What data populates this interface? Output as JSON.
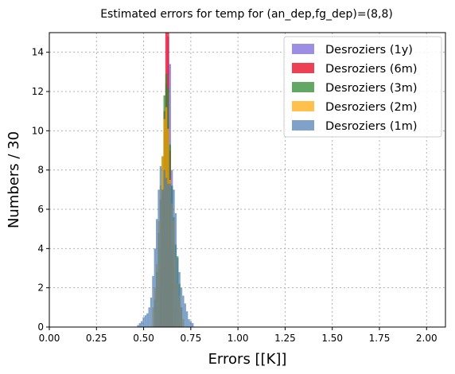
{
  "chart_data": {
    "type": "bar",
    "title": "Estimated errors for temp for (an_dep,fg_dep)=(8,8)",
    "xlabel": "Errors [[K]]",
    "ylabel": "Numbers / 30",
    "xlim": [
      0,
      2.1
    ],
    "ylim": [
      0,
      15
    ],
    "xticks": [
      0.0,
      0.25,
      0.5,
      0.75,
      1.0,
      1.25,
      1.5,
      1.75,
      2.0
    ],
    "xtick_labels": [
      "0.00",
      "0.25",
      "0.50",
      "0.75",
      "1.00",
      "1.25",
      "1.50",
      "1.75",
      "2.00"
    ],
    "yticks": [
      0,
      2,
      4,
      6,
      8,
      10,
      12,
      14
    ],
    "ytick_labels": [
      "0",
      "2",
      "4",
      "6",
      "8",
      "10",
      "12",
      "14"
    ],
    "grid": true,
    "legend_position": "top-right",
    "bin_width": 0.01,
    "series": [
      {
        "name": "Desroziers (1y)",
        "color": "#7b68d9",
        "opacity": 0.75,
        "x": [
          0.57,
          0.58,
          0.59,
          0.6,
          0.61,
          0.62,
          0.63,
          0.64,
          0.65,
          0.66,
          0.67
        ],
        "values": [
          0.8,
          2.0,
          4.0,
          6.8,
          10.0,
          12.4,
          14.8,
          13.4,
          8.0,
          3.0,
          1.0
        ]
      },
      {
        "name": "Desroziers (6m)",
        "color": "#e8102a",
        "opacity": 0.8,
        "x": [
          0.59,
          0.6,
          0.61,
          0.62,
          0.63,
          0.64,
          0.65
        ],
        "values": [
          3.0,
          7.0,
          11.0,
          15.0,
          15.0,
          9.0,
          4.0
        ]
      },
      {
        "name": "Desroziers (3m)",
        "color": "#2e8b30",
        "opacity": 0.75,
        "x": [
          0.56,
          0.57,
          0.58,
          0.59,
          0.6,
          0.61,
          0.62,
          0.63,
          0.64,
          0.65,
          0.66,
          0.67,
          0.68,
          0.69,
          0.7
        ],
        "values": [
          1.4,
          2.8,
          4.8,
          6.5,
          8.7,
          11.8,
          12.9,
          12.2,
          9.3,
          7.2,
          5.6,
          4.2,
          3.6,
          2.2,
          1.0
        ]
      },
      {
        "name": "Desroziers (2m)",
        "color": "#ffa500",
        "opacity": 0.7,
        "x": [
          0.55,
          0.56,
          0.57,
          0.58,
          0.59,
          0.6,
          0.61,
          0.62,
          0.63,
          0.64,
          0.65,
          0.66,
          0.67,
          0.68,
          0.69,
          0.7,
          0.71
        ],
        "values": [
          1.0,
          2.0,
          3.2,
          5.4,
          7.2,
          8.7,
          10.6,
          11.2,
          10.1,
          7.5,
          6.3,
          5.4,
          3.5,
          2.2,
          1.6,
          1.0,
          0.4
        ]
      },
      {
        "name": "Desroziers (1m)",
        "color": "#4a7ab0",
        "opacity": 0.7,
        "x": [
          0.47,
          0.48,
          0.49,
          0.5,
          0.51,
          0.52,
          0.53,
          0.54,
          0.55,
          0.56,
          0.57,
          0.58,
          0.59,
          0.6,
          0.61,
          0.62,
          0.63,
          0.64,
          0.65,
          0.66,
          0.67,
          0.68,
          0.69,
          0.7,
          0.71,
          0.72,
          0.73,
          0.74,
          0.75,
          0.76
        ],
        "values": [
          0.1,
          0.2,
          0.3,
          0.5,
          0.6,
          0.7,
          1.0,
          1.5,
          2.6,
          4.0,
          5.5,
          7.0,
          8.2,
          7.0,
          8.0,
          7.6,
          7.3,
          7.3,
          7.2,
          7.0,
          5.8,
          3.5,
          2.8,
          2.0,
          1.6,
          1.2,
          0.8,
          0.4,
          0.3,
          0.2
        ]
      }
    ]
  }
}
